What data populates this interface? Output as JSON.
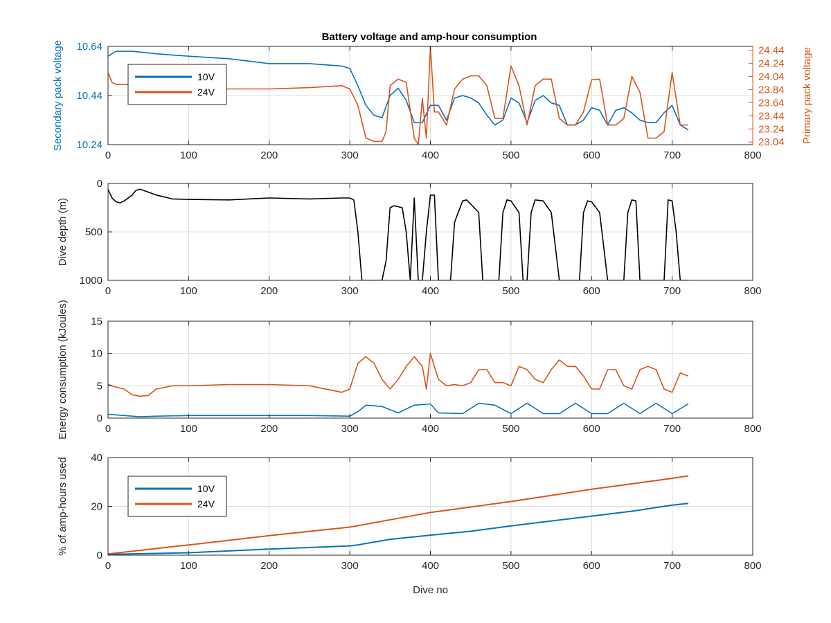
{
  "figure": {
    "title": "Battery voltage and amp-hour consumption"
  },
  "colors": {
    "series_10V": "#0072BD",
    "series_24V": "#D95319",
    "depth": "#000000",
    "axis": "#262626",
    "grid": "#dcdcdc"
  },
  "chart_data": [
    {
      "type": "line",
      "title": "Battery voltage and amp-hour consumption",
      "xlabel": "",
      "ylabel": "Secondary pack voltage",
      "ylabel_right": "Primary pack voltage",
      "xlim": [
        0,
        800
      ],
      "ylim": [
        10.24,
        10.64
      ],
      "ylim_right": [
        23.0,
        24.5
      ],
      "x_ticks": [
        0,
        100,
        200,
        300,
        400,
        500,
        600,
        700,
        800
      ],
      "y_ticks": [
        10.24,
        10.44,
        10.64
      ],
      "y_ticks_right": [
        23.04,
        23.24,
        23.44,
        23.64,
        23.84,
        24.04,
        24.24,
        24.44
      ],
      "grid": true,
      "legend_position": "top-left",
      "series": [
        {
          "name": "10V",
          "axis": "left",
          "x": [
            0,
            5,
            10,
            30,
            60,
            100,
            150,
            200,
            250,
            290,
            300,
            310,
            320,
            330,
            340,
            350,
            360,
            370,
            380,
            390,
            400,
            410,
            420,
            430,
            440,
            450,
            460,
            470,
            480,
            490,
            500,
            510,
            520,
            530,
            540,
            550,
            560,
            570,
            580,
            590,
            600,
            610,
            620,
            630,
            640,
            650,
            660,
            670,
            680,
            690,
            700,
            710,
            720
          ],
          "values": [
            10.6,
            10.61,
            10.62,
            10.62,
            10.61,
            10.6,
            10.59,
            10.57,
            10.57,
            10.56,
            10.55,
            10.48,
            10.4,
            10.36,
            10.35,
            10.44,
            10.47,
            10.42,
            10.33,
            10.33,
            10.4,
            10.4,
            10.34,
            10.43,
            10.44,
            10.43,
            10.41,
            10.36,
            10.32,
            10.34,
            10.43,
            10.41,
            10.33,
            10.42,
            10.44,
            10.41,
            10.4,
            10.32,
            10.32,
            10.34,
            10.39,
            10.38,
            10.32,
            10.38,
            10.39,
            10.37,
            10.34,
            10.33,
            10.33,
            10.37,
            10.4,
            10.32,
            10.3
          ]
        },
        {
          "name": "24V",
          "axis": "right",
          "x": [
            0,
            5,
            10,
            30,
            60,
            100,
            150,
            200,
            250,
            290,
            300,
            310,
            320,
            330,
            340,
            345,
            350,
            360,
            370,
            380,
            385,
            390,
            395,
            400,
            405,
            410,
            420,
            430,
            440,
            450,
            460,
            470,
            480,
            490,
            500,
            510,
            520,
            530,
            540,
            550,
            560,
            570,
            580,
            590,
            600,
            610,
            620,
            630,
            640,
            650,
            660,
            670,
            680,
            690,
            700,
            710,
            720
          ],
          "values": [
            24.1,
            23.95,
            23.92,
            23.92,
            23.89,
            23.86,
            23.85,
            23.85,
            23.87,
            23.9,
            23.85,
            23.6,
            23.1,
            23.05,
            23.05,
            23.2,
            23.9,
            24.0,
            23.95,
            23.1,
            23.0,
            23.7,
            23.1,
            24.5,
            23.5,
            23.5,
            23.3,
            23.85,
            24.0,
            24.05,
            24.05,
            23.9,
            23.4,
            23.4,
            24.2,
            23.9,
            23.3,
            23.9,
            24.0,
            24.0,
            23.4,
            23.3,
            23.3,
            23.5,
            23.99,
            24.0,
            23.3,
            23.3,
            23.4,
            24.04,
            23.8,
            23.1,
            23.1,
            23.2,
            24.1,
            23.3,
            23.3
          ]
        }
      ]
    },
    {
      "type": "line",
      "title": "",
      "xlabel": "",
      "ylabel": "Dive depth (m)",
      "xlim": [
        0,
        800
      ],
      "ylim": [
        0,
        1000
      ],
      "y_reversed": true,
      "x_ticks": [
        0,
        100,
        200,
        300,
        400,
        500,
        600,
        700,
        800
      ],
      "y_ticks": [
        0,
        500,
        1000
      ],
      "y_tick_labels": [
        "0",
        "500",
        "1000"
      ],
      "grid": true,
      "series": [
        {
          "name": "",
          "x": [
            0,
            5,
            10,
            15,
            20,
            30,
            35,
            40,
            60,
            80,
            100,
            150,
            200,
            250,
            290,
            300,
            305,
            310,
            315,
            320,
            340,
            345,
            350,
            355,
            365,
            370,
            375,
            380,
            385,
            390,
            395,
            400,
            405,
            410,
            420,
            425,
            430,
            440,
            445,
            460,
            465,
            470,
            485,
            490,
            495,
            500,
            510,
            515,
            520,
            525,
            530,
            540,
            550,
            560,
            565,
            580,
            585,
            590,
            595,
            600,
            610,
            620,
            625,
            640,
            645,
            650,
            655,
            660,
            665,
            670,
            690,
            695,
            700,
            705,
            710,
            715,
            720
          ],
          "values": [
            60,
            150,
            190,
            200,
            180,
            120,
            70,
            60,
            120,
            160,
            165,
            170,
            150,
            160,
            150,
            150,
            170,
            500,
            1000,
            1000,
            1000,
            800,
            250,
            230,
            250,
            500,
            1000,
            150,
            1000,
            1000,
            500,
            120,
            120,
            1000,
            1000,
            1000,
            400,
            180,
            170,
            300,
            1000,
            1000,
            1000,
            300,
            170,
            180,
            300,
            1000,
            1000,
            300,
            170,
            180,
            300,
            1000,
            1000,
            1000,
            1000,
            300,
            180,
            190,
            300,
            1000,
            1000,
            1000,
            300,
            170,
            180,
            1000,
            1000,
            1000,
            1000,
            170,
            180,
            500,
            1000,
            1000,
            1000
          ]
        }
      ]
    },
    {
      "type": "line",
      "title": "",
      "xlabel": "",
      "ylabel": "Energy consumption (kJoules)",
      "xlim": [
        0,
        800
      ],
      "ylim": [
        0,
        15
      ],
      "x_ticks": [
        0,
        100,
        200,
        300,
        400,
        500,
        600,
        700,
        800
      ],
      "y_ticks": [
        0,
        5,
        10,
        15
      ],
      "grid": true,
      "series": [
        {
          "name": "24V",
          "x": [
            0,
            10,
            20,
            30,
            40,
            50,
            60,
            80,
            100,
            150,
            200,
            250,
            290,
            300,
            310,
            320,
            330,
            340,
            350,
            360,
            370,
            380,
            390,
            395,
            400,
            410,
            420,
            430,
            440,
            450,
            460,
            470,
            480,
            490,
            500,
            510,
            520,
            530,
            540,
            550,
            560,
            570,
            580,
            590,
            600,
            610,
            620,
            630,
            640,
            650,
            660,
            670,
            680,
            690,
            700,
            710,
            720
          ],
          "values": [
            5.2,
            4.8,
            4.5,
            3.6,
            3.4,
            3.5,
            4.5,
            5.0,
            5.0,
            5.2,
            5.2,
            5.0,
            4.0,
            4.5,
            8.5,
            9.5,
            8.5,
            6.0,
            4.5,
            6.0,
            8.0,
            9.5,
            8.0,
            4.5,
            10.0,
            6.0,
            5.0,
            5.2,
            5.0,
            5.5,
            7.5,
            7.5,
            5.5,
            5.5,
            5.0,
            8.0,
            7.5,
            6.0,
            5.5,
            7.5,
            9.0,
            8.0,
            8.0,
            6.5,
            4.5,
            4.5,
            7.5,
            7.5,
            5.0,
            4.5,
            7.5,
            8.0,
            7.5,
            4.5,
            4.0,
            7.0,
            6.5
          ]
        },
        {
          "name": "10V",
          "x": [
            0,
            20,
            40,
            60,
            100,
            150,
            200,
            250,
            300,
            310,
            320,
            340,
            360,
            380,
            400,
            410,
            440,
            460,
            480,
            500,
            520,
            540,
            560,
            580,
            600,
            620,
            640,
            660,
            680,
            700,
            720
          ],
          "values": [
            0.6,
            0.4,
            0.2,
            0.3,
            0.4,
            0.4,
            0.4,
            0.4,
            0.3,
            1.0,
            2.0,
            1.8,
            0.8,
            2.0,
            2.2,
            0.8,
            0.7,
            2.3,
            2.0,
            0.7,
            2.3,
            0.7,
            0.7,
            2.3,
            0.7,
            0.7,
            2.3,
            0.7,
            2.3,
            0.7,
            2.2
          ]
        }
      ]
    },
    {
      "type": "line",
      "title": "",
      "xlabel": "Dive no",
      "ylabel": "% of amp-hours used",
      "xlim": [
        0,
        800
      ],
      "ylim": [
        0,
        40
      ],
      "x_ticks": [
        0,
        100,
        200,
        300,
        400,
        500,
        600,
        700,
        800
      ],
      "y_ticks": [
        0,
        20,
        40
      ],
      "grid": true,
      "legend_position": "top-left",
      "series": [
        {
          "name": "10V",
          "x": [
            0,
            100,
            200,
            300,
            310,
            350,
            400,
            450,
            500,
            550,
            600,
            650,
            700,
            720
          ],
          "values": [
            0.3,
            1.0,
            2.5,
            3.8,
            4.2,
            6.5,
            8.2,
            9.8,
            12.0,
            14.0,
            16.0,
            18.0,
            20.5,
            21.2
          ]
        },
        {
          "name": "24V",
          "x": [
            0,
            100,
            200,
            300,
            400,
            500,
            600,
            700,
            720
          ],
          "values": [
            0.5,
            4.2,
            8.0,
            11.5,
            17.5,
            22.0,
            27.0,
            31.5,
            32.5
          ]
        }
      ]
    }
  ]
}
